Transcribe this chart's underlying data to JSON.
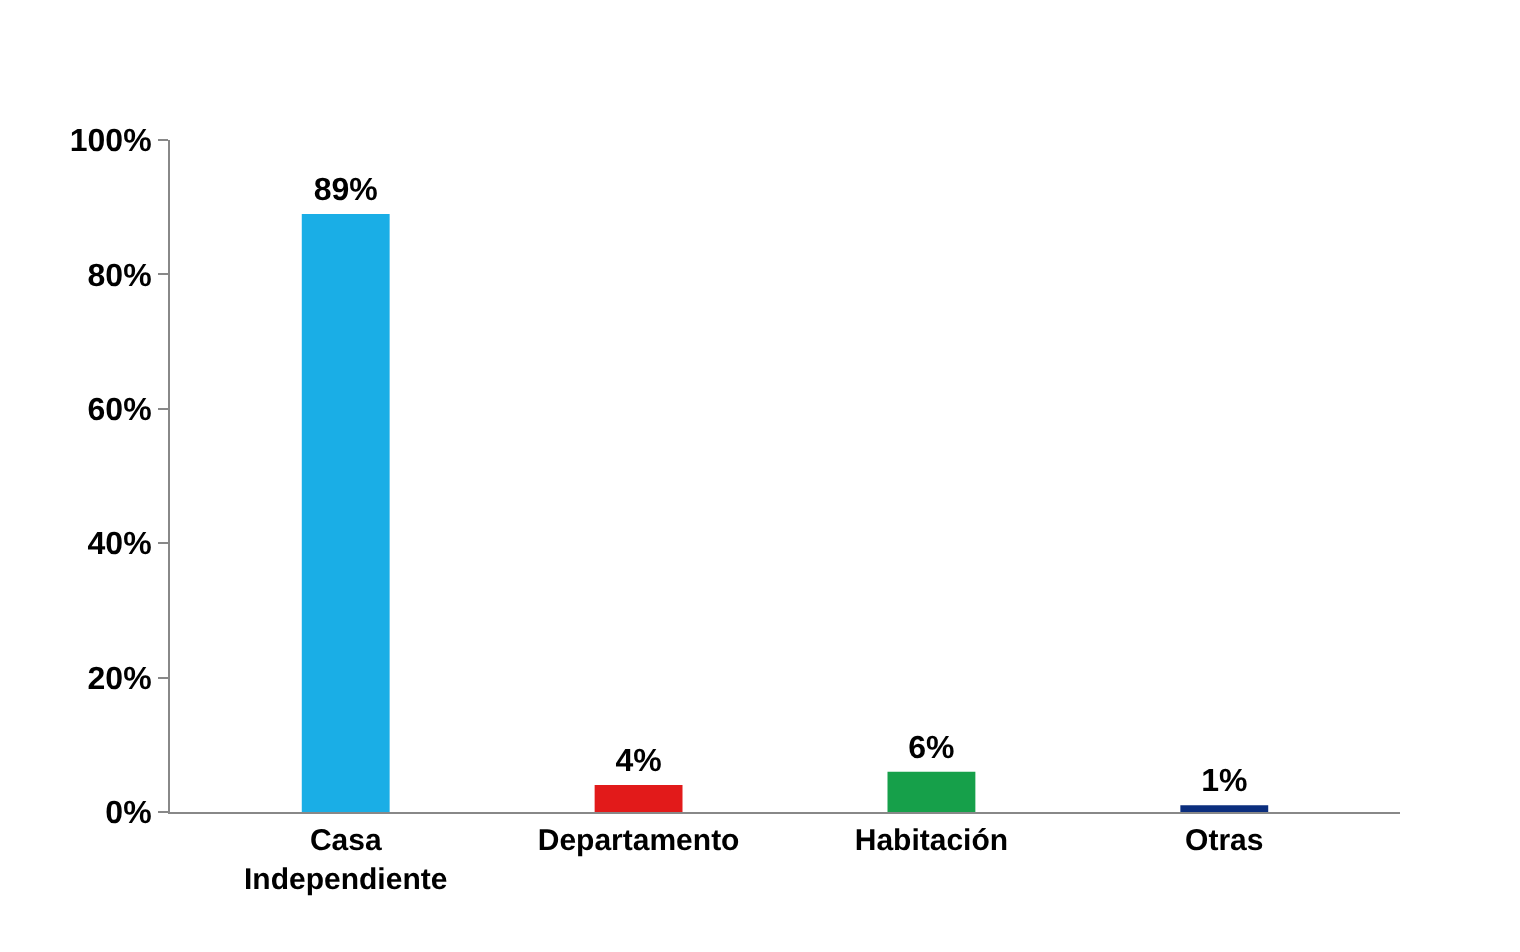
{
  "chart_data": {
    "type": "bar",
    "categories": [
      "Casa\nIndependiente",
      "Departamento",
      "Habitación",
      "Otras"
    ],
    "values": [
      89,
      4,
      6,
      1
    ],
    "colors": [
      "#1aaee6",
      "#e21a1a",
      "#16a04a",
      "#0b2e7e"
    ],
    "value_labels": [
      "89%",
      "4%",
      "6%",
      "1%"
    ],
    "ylim": [
      0,
      100
    ],
    "yticks": [
      {
        "value": 0,
        "label": "0%"
      },
      {
        "value": 20,
        "label": "20%"
      },
      {
        "value": 40,
        "label": "40%"
      },
      {
        "value": 60,
        "label": "60%"
      },
      {
        "value": 80,
        "label": "80%"
      },
      {
        "value": 100,
        "label": "100%"
      }
    ],
    "grid": false,
    "legend": false
  }
}
